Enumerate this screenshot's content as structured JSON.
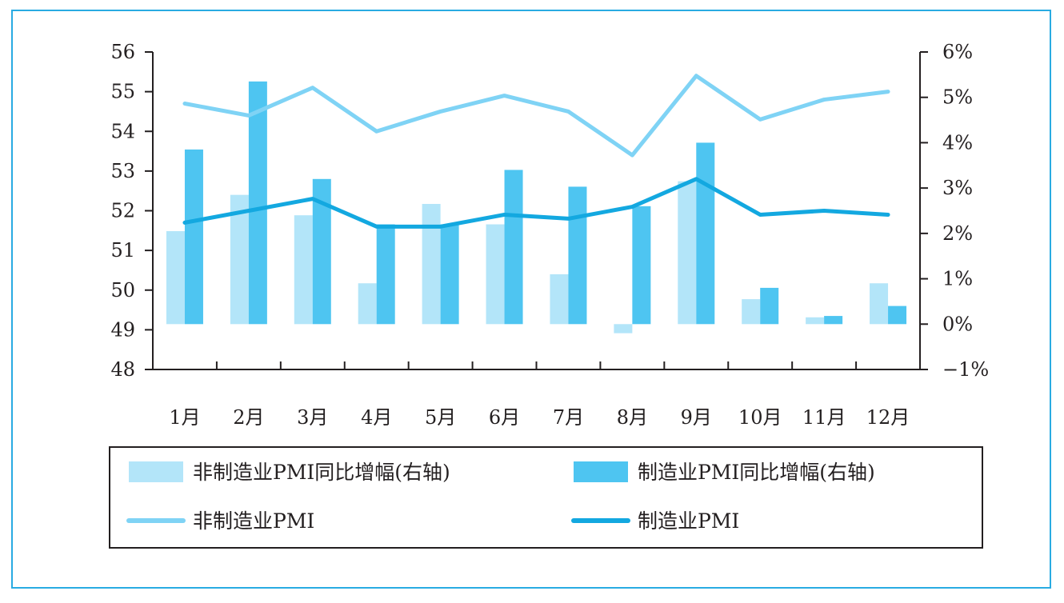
{
  "colors": {
    "nonmfg_bar": "#b3e5f9",
    "mfg_bar": "#4ec5f1",
    "nonmfg_line": "#7fd3f5",
    "mfg_line": "#13a8e0",
    "axis": "#231f20",
    "frame": "#29abe2"
  },
  "chart_data": {
    "type": "bar",
    "title": "",
    "categories": [
      "1月",
      "2月",
      "3月",
      "4月",
      "5月",
      "6月",
      "7月",
      "8月",
      "9月",
      "10月",
      "11月",
      "12月"
    ],
    "left_axis": {
      "ylim": [
        48,
        56
      ],
      "ticks": [
        "48",
        "49",
        "50",
        "51",
        "52",
        "53",
        "54",
        "55",
        "56"
      ]
    },
    "right_axis": {
      "ylim": [
        -1,
        6
      ],
      "ticks": [
        "−1%",
        "0%",
        "1%",
        "2%",
        "3%",
        "4%",
        "5%",
        "6%"
      ]
    },
    "series": [
      {
        "name": "非制造业PMI同比增幅(右轴)",
        "type": "bar",
        "axis": "right",
        "values": [
          2.05,
          2.85,
          2.4,
          0.9,
          2.65,
          2.2,
          1.1,
          -0.2,
          3.15,
          0.55,
          0.15,
          0.9
        ]
      },
      {
        "name": "制造业PMI同比增幅(右轴)",
        "type": "bar",
        "axis": "right",
        "values": [
          3.85,
          5.35,
          3.2,
          2.2,
          2.2,
          3.4,
          3.03,
          2.6,
          4.0,
          0.8,
          0.18,
          0.4
        ]
      },
      {
        "name": "非制造业PMI",
        "type": "line",
        "axis": "left",
        "values": [
          54.7,
          54.4,
          55.1,
          54.0,
          54.5,
          54.9,
          54.5,
          53.4,
          55.4,
          54.3,
          54.8,
          55.0
        ]
      },
      {
        "name": "制造业PMI",
        "type": "line",
        "axis": "left",
        "values": [
          51.7,
          52.0,
          52.3,
          51.6,
          51.6,
          51.9,
          51.8,
          52.1,
          52.8,
          51.9,
          52.0,
          51.9
        ]
      }
    ],
    "legend_position": "bottom",
    "grid": false
  }
}
